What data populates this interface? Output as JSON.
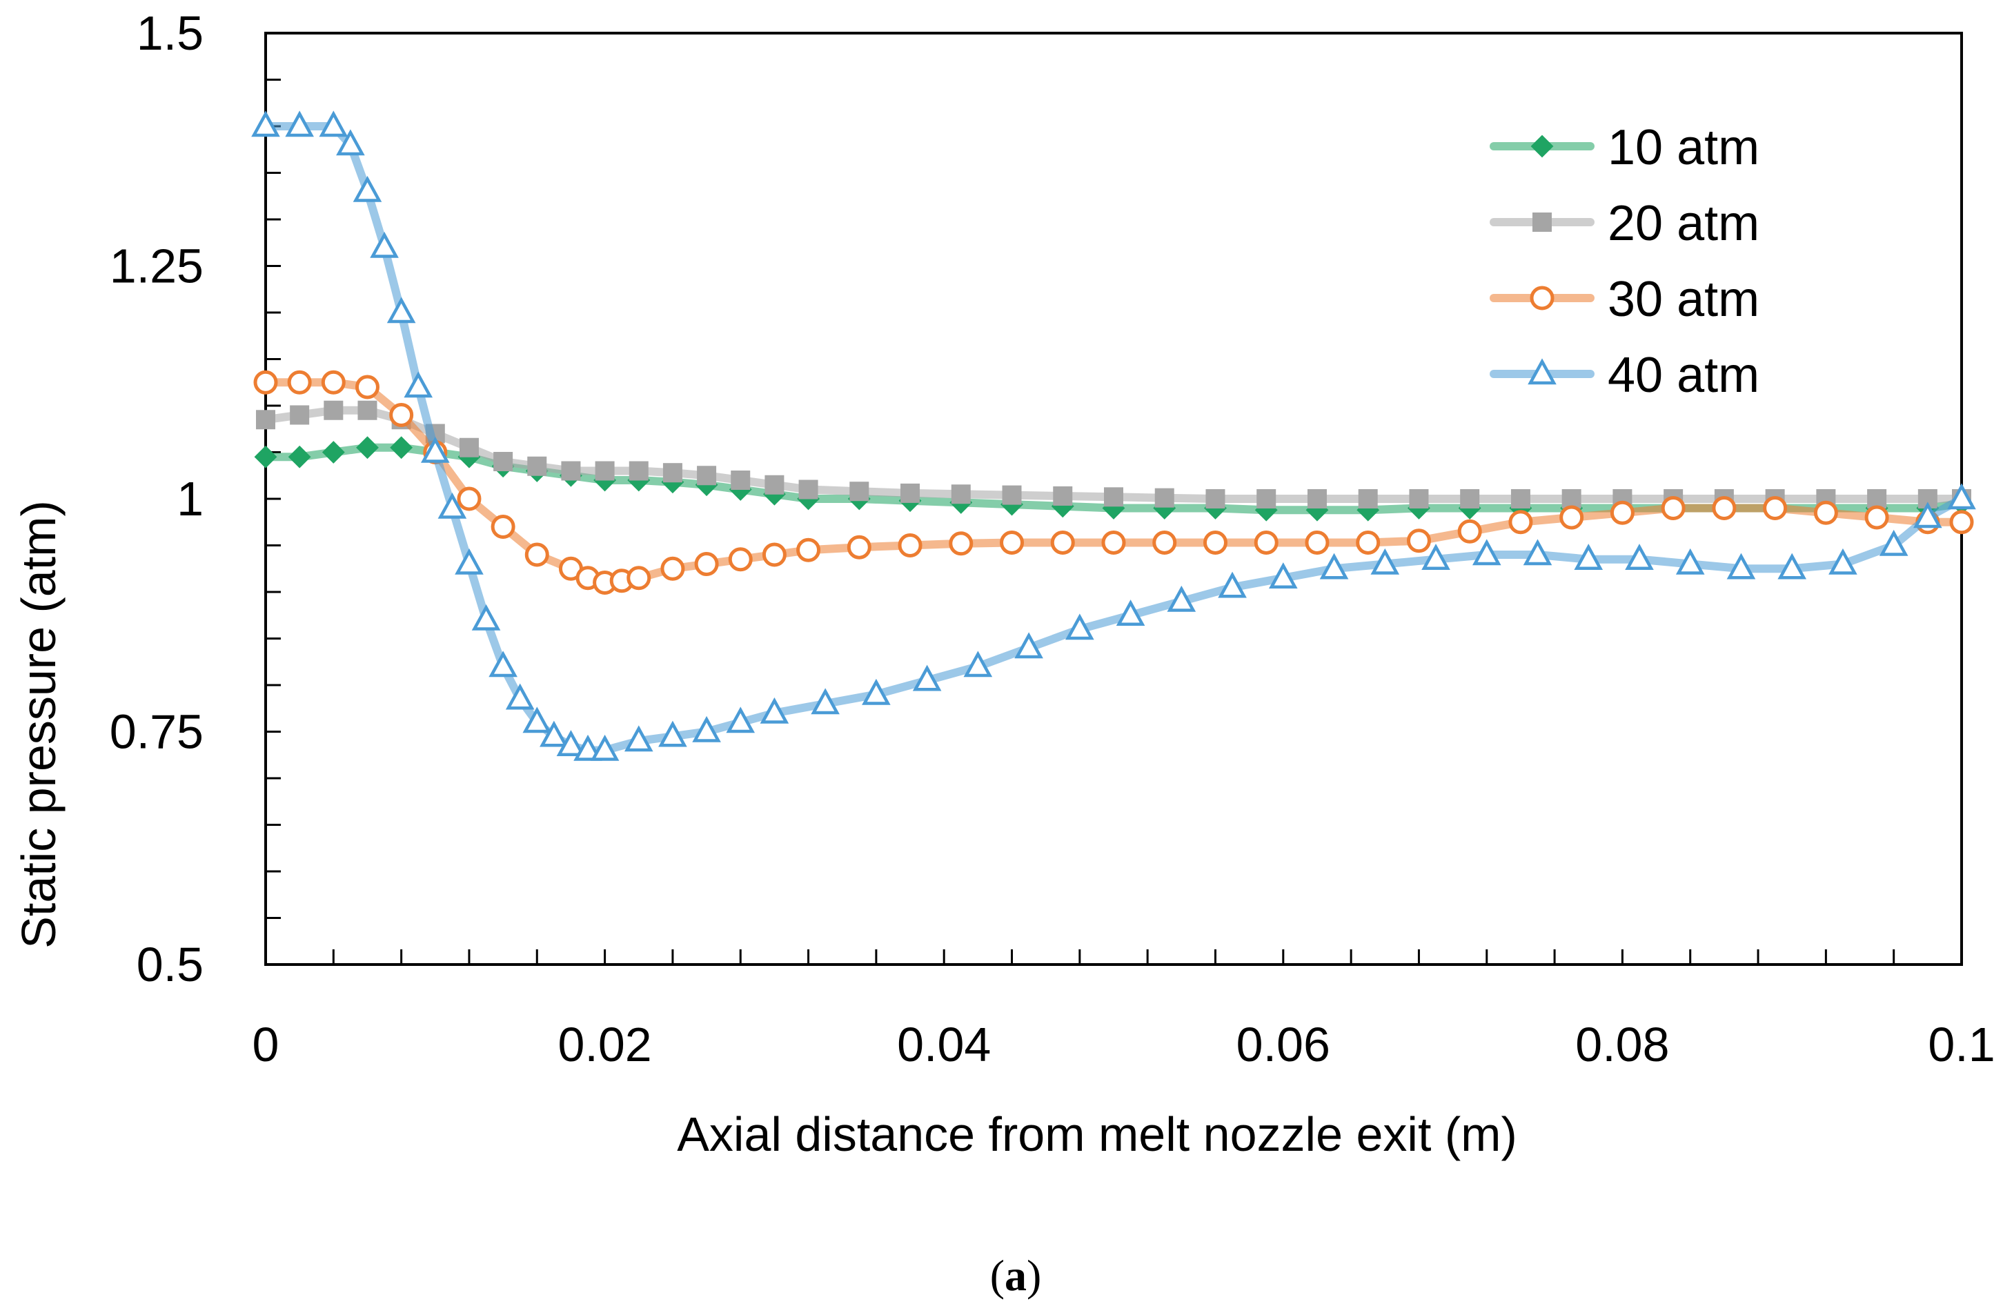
{
  "chart_data": {
    "type": "line",
    "title": "",
    "xlabel": "Axial distance from melt nozzle exit (m)",
    "ylabel": "Static pressure (atm)",
    "xlim": [
      0,
      0.1
    ],
    "ylim": [
      0.5,
      1.5
    ],
    "xticks": [
      0,
      0.02,
      0.04,
      0.06,
      0.08,
      0.1
    ],
    "xtick_labels": [
      "0",
      "0.02",
      "0.04",
      "0.06",
      "0.08",
      "0.1"
    ],
    "yticks": [
      0.5,
      0.75,
      1,
      1.25,
      1.5
    ],
    "ytick_labels": [
      "0.5",
      "0.75",
      "1",
      "1.25",
      "1.5"
    ],
    "x_minor_step": 0.004,
    "y_minor_step": 0.05,
    "grid": false,
    "legend_position": "top-right",
    "caption_open": "(",
    "caption_label": "a",
    "caption_close": ")",
    "series": [
      {
        "name": "10 atm",
        "color": "#1fa463",
        "marker": "diamond",
        "x": [
          0,
          0.002,
          0.004,
          0.006,
          0.008,
          0.01,
          0.012,
          0.014,
          0.016,
          0.018,
          0.02,
          0.022,
          0.024,
          0.026,
          0.028,
          0.03,
          0.032,
          0.035,
          0.038,
          0.041,
          0.044,
          0.047,
          0.05,
          0.053,
          0.056,
          0.059,
          0.062,
          0.065,
          0.068,
          0.071,
          0.074,
          0.077,
          0.08,
          0.083,
          0.086,
          0.089,
          0.092,
          0.095,
          0.098,
          0.1
        ],
        "y": [
          1.045,
          1.045,
          1.05,
          1.055,
          1.055,
          1.05,
          1.045,
          1.035,
          1.03,
          1.025,
          1.02,
          1.02,
          1.018,
          1.015,
          1.01,
          1.005,
          1.0,
          1.0,
          0.998,
          0.996,
          0.994,
          0.992,
          0.99,
          0.99,
          0.99,
          0.988,
          0.988,
          0.988,
          0.99,
          0.99,
          0.99,
          0.99,
          0.99,
          0.99,
          0.99,
          0.99,
          0.99,
          0.99,
          0.99,
          0.995
        ]
      },
      {
        "name": "20 atm",
        "color": "#a5a5a5",
        "marker": "square",
        "x": [
          0,
          0.002,
          0.004,
          0.006,
          0.008,
          0.01,
          0.012,
          0.014,
          0.016,
          0.018,
          0.02,
          0.022,
          0.024,
          0.026,
          0.028,
          0.03,
          0.032,
          0.035,
          0.038,
          0.041,
          0.044,
          0.047,
          0.05,
          0.053,
          0.056,
          0.059,
          0.062,
          0.065,
          0.068,
          0.071,
          0.074,
          0.077,
          0.08,
          0.083,
          0.086,
          0.089,
          0.092,
          0.095,
          0.098,
          0.1
        ],
        "y": [
          1.085,
          1.09,
          1.095,
          1.095,
          1.085,
          1.07,
          1.055,
          1.04,
          1.035,
          1.03,
          1.03,
          1.03,
          1.028,
          1.025,
          1.02,
          1.015,
          1.01,
          1.008,
          1.006,
          1.005,
          1.004,
          1.003,
          1.002,
          1.001,
          1.0,
          1.0,
          1.0,
          1.0,
          1.0,
          1.0,
          1.0,
          1.0,
          1.0,
          1.0,
          1.0,
          1.0,
          1.0,
          1.0,
          1.0,
          1.0
        ]
      },
      {
        "name": "30 atm",
        "color": "#ed7d31",
        "marker": "circle",
        "x": [
          0,
          0.002,
          0.004,
          0.006,
          0.008,
          0.01,
          0.012,
          0.014,
          0.016,
          0.018,
          0.019,
          0.02,
          0.021,
          0.022,
          0.024,
          0.026,
          0.028,
          0.03,
          0.032,
          0.035,
          0.038,
          0.041,
          0.044,
          0.047,
          0.05,
          0.053,
          0.056,
          0.059,
          0.062,
          0.065,
          0.068,
          0.071,
          0.074,
          0.077,
          0.08,
          0.083,
          0.086,
          0.089,
          0.092,
          0.095,
          0.098,
          0.1
        ],
        "y": [
          1.125,
          1.125,
          1.125,
          1.12,
          1.09,
          1.05,
          1.0,
          0.97,
          0.94,
          0.925,
          0.915,
          0.91,
          0.912,
          0.915,
          0.925,
          0.93,
          0.935,
          0.94,
          0.945,
          0.948,
          0.95,
          0.952,
          0.953,
          0.953,
          0.953,
          0.953,
          0.953,
          0.953,
          0.953,
          0.953,
          0.955,
          0.965,
          0.975,
          0.98,
          0.985,
          0.99,
          0.99,
          0.99,
          0.985,
          0.98,
          0.975,
          0.975
        ]
      },
      {
        "name": "40 atm",
        "color": "#4a9bd6",
        "marker": "triangle",
        "x": [
          0,
          0.002,
          0.004,
          0.005,
          0.006,
          0.007,
          0.008,
          0.009,
          0.01,
          0.011,
          0.012,
          0.013,
          0.014,
          0.015,
          0.016,
          0.017,
          0.018,
          0.019,
          0.02,
          0.022,
          0.024,
          0.026,
          0.028,
          0.03,
          0.033,
          0.036,
          0.039,
          0.042,
          0.045,
          0.048,
          0.051,
          0.054,
          0.057,
          0.06,
          0.063,
          0.066,
          0.069,
          0.072,
          0.075,
          0.078,
          0.081,
          0.084,
          0.087,
          0.09,
          0.093,
          0.096,
          0.098,
          0.1
        ],
        "y": [
          1.4,
          1.4,
          1.4,
          1.38,
          1.33,
          1.27,
          1.2,
          1.12,
          1.05,
          0.99,
          0.93,
          0.87,
          0.82,
          0.785,
          0.76,
          0.745,
          0.735,
          0.73,
          0.73,
          0.74,
          0.745,
          0.75,
          0.76,
          0.77,
          0.78,
          0.79,
          0.805,
          0.82,
          0.84,
          0.86,
          0.875,
          0.89,
          0.905,
          0.915,
          0.925,
          0.93,
          0.935,
          0.94,
          0.94,
          0.935,
          0.935,
          0.93,
          0.925,
          0.925,
          0.93,
          0.95,
          0.98,
          1.0
        ]
      }
    ]
  }
}
